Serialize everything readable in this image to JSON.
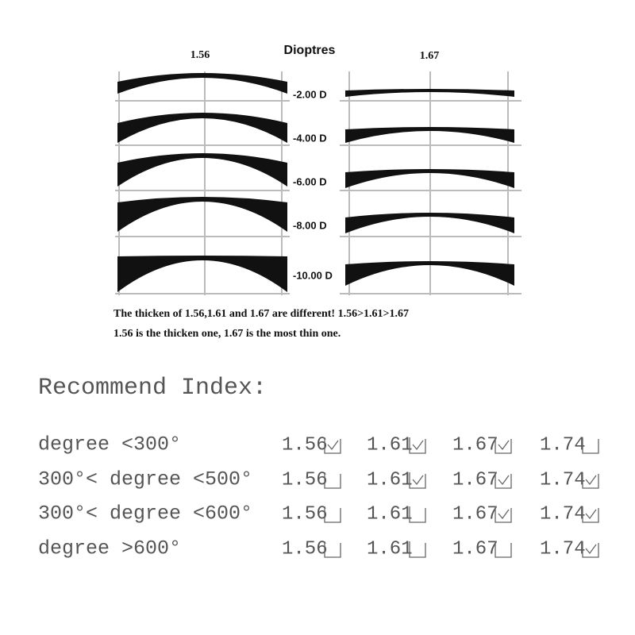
{
  "diagram": {
    "left_label": "1.56",
    "title": "Dioptres",
    "right_label": "1.67",
    "dioptres": [
      "-2.00 D",
      "-4.00 D",
      "-6.00 D",
      "-8.00 D",
      "-10.00 D"
    ],
    "caption": [
      "The thicken of 1.56,1.61 and 1.67 are different! 1.56>1.61>1.67",
      "1.56 is the thicken one, 1.67 is the most thin one."
    ]
  },
  "recommend": {
    "title": "Recommend Index:",
    "rows": [
      {
        "label": "degree <300°",
        "cells": [
          {
            "index": "1.56",
            "checked": true
          },
          {
            "index": "1.61",
            "checked": true
          },
          {
            "index": "1.67",
            "checked": true
          },
          {
            "index": "1.74",
            "checked": false
          }
        ]
      },
      {
        "label": "300°< degree <500°",
        "cells": [
          {
            "index": "1.56",
            "checked": false
          },
          {
            "index": "1.61",
            "checked": true
          },
          {
            "index": "1.67",
            "checked": true
          },
          {
            "index": "1.74",
            "checked": true
          }
        ]
      },
      {
        "label": "300°< degree <600°",
        "cells": [
          {
            "index": "1.56",
            "checked": false
          },
          {
            "index": "1.61",
            "checked": false
          },
          {
            "index": "1.67",
            "checked": true
          },
          {
            "index": "1.74",
            "checked": true
          }
        ]
      },
      {
        "label": "degree >600°",
        "cells": [
          {
            "index": "1.56",
            "checked": false
          },
          {
            "index": "1.61",
            "checked": false
          },
          {
            "index": "1.67",
            "checked": false
          },
          {
            "index": "1.74",
            "checked": true
          }
        ]
      }
    ]
  }
}
